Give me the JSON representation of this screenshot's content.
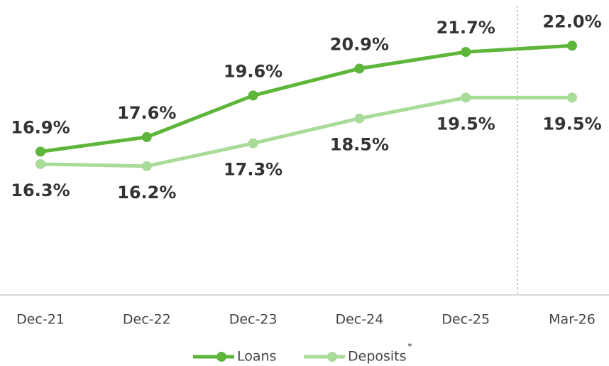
{
  "chart_data": {
    "type": "line",
    "categories": [
      "Dec-21",
      "Dec-22",
      "Dec-23",
      "Dec-24",
      "Dec-25",
      "Mar-26"
    ],
    "series": [
      {
        "name": "Loans",
        "color": "#5db53a",
        "values": [
          16.9,
          17.6,
          19.6,
          20.9,
          21.7,
          22.0
        ],
        "value_labels": [
          "16.9%",
          "17.6%",
          "19.6%",
          "20.9%",
          "21.7%",
          "22.0%"
        ]
      },
      {
        "name": "Deposits",
        "color": "#a9db99",
        "values": [
          16.3,
          16.2,
          17.3,
          18.5,
          19.5,
          19.5
        ],
        "value_labels": [
          "16.3%",
          "16.2%",
          "17.3%",
          "18.5%",
          "19.5%",
          "19.5%"
        ]
      }
    ],
    "legend_note": "*",
    "ylim": [
      10,
      24.2
    ]
  }
}
